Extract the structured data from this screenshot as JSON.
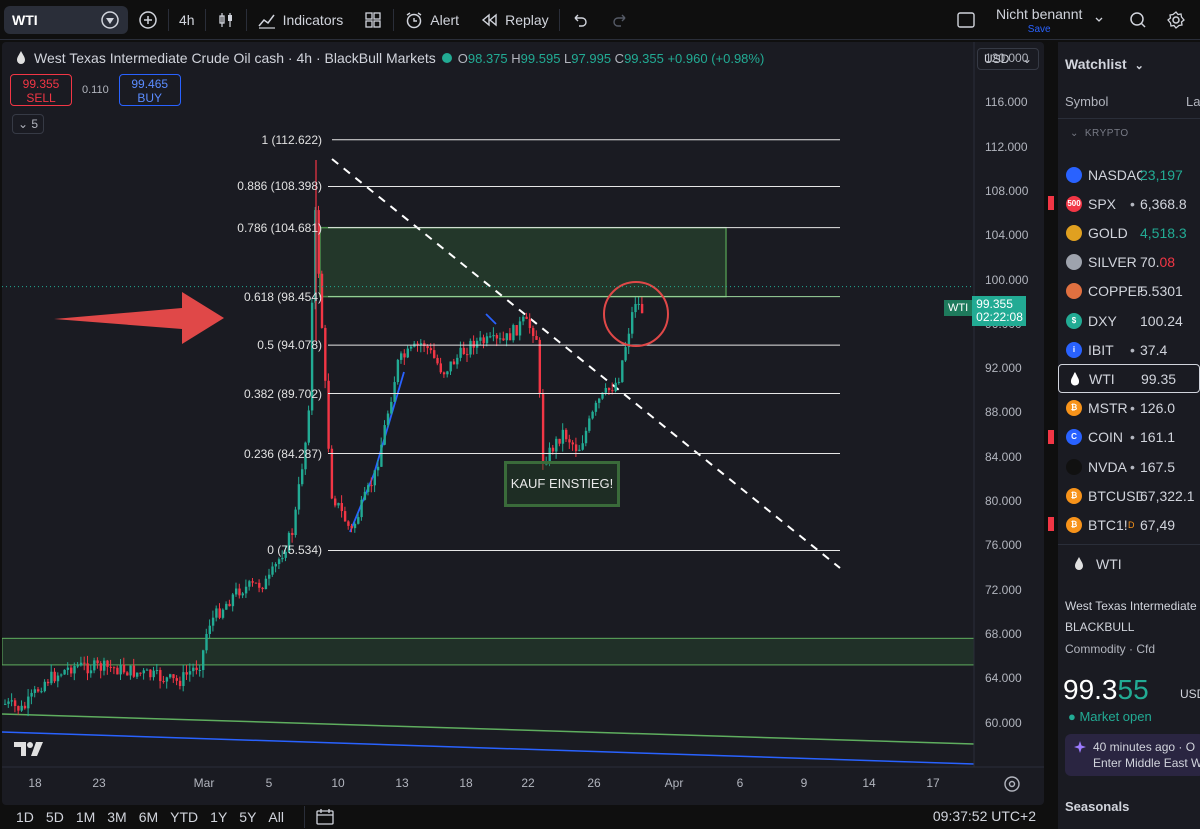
{
  "toolbar": {
    "symbol": "WTI",
    "interval": "4h",
    "indicators_label": "Indicators",
    "alert_label": "Alert",
    "replay_label": "Replay",
    "layout_name": "Nicht benannt",
    "save_label": "Save"
  },
  "chart": {
    "title": "West Texas Intermediate Crude Oil cash · 4h · BlackBull Markets",
    "ohlc": {
      "o_key": "O",
      "o": "98.375",
      "h_key": "H",
      "h": "99.595",
      "l_key": "L",
      "l": "97.995",
      "c_key": "C",
      "c": "99.355",
      "change": "+0.960 (+0.98%)"
    },
    "sell_price": "99.355",
    "sell_label": "SELL",
    "spread": "0.110",
    "buy_price": "99.465",
    "buy_label": "BUY",
    "interval_badge": "5",
    "currency": "USD",
    "price_label_symbol": "WTI",
    "price_label_value": "99.355",
    "price_label_countdown": "02:22:08",
    "annotation": "KAUF EINSTIEG!",
    "fib_levels": [
      {
        "label": "1 (112.622)",
        "value": 112.622
      },
      {
        "label": "0.886 (108.398)",
        "value": 108.398
      },
      {
        "label": "0.786 (104.681)",
        "value": 104.681
      },
      {
        "label": "0.618 (98.454)",
        "value": 98.454
      },
      {
        "label": "0.5 (94.078)",
        "value": 94.078
      },
      {
        "label": "0.382 (89.702)",
        "value": 89.702
      },
      {
        "label": "0.236 (84.287)",
        "value": 84.287
      },
      {
        "label": "0 (75.534)",
        "value": 75.534
      }
    ],
    "y_ticks": [
      "120.000",
      "116.000",
      "112.000",
      "108.000",
      "104.000",
      "100.000",
      "96.000",
      "92.000",
      "88.000",
      "84.000",
      "80.000",
      "76.000",
      "72.000",
      "68.000",
      "64.000",
      "60.000"
    ],
    "x_ticks": [
      "18",
      "23",
      "Mar",
      "5",
      "10",
      "13",
      "18",
      "22",
      "26",
      "Apr",
      "6",
      "9",
      "14",
      "17"
    ],
    "time_range_buttons": [
      "1D",
      "5D",
      "1M",
      "3M",
      "6M",
      "YTD",
      "1Y",
      "5Y",
      "All"
    ],
    "clock": "09:37:52 UTC+2",
    "colors": {
      "up": "#22ab94",
      "down": "#f23645",
      "zone": "#2f5a35",
      "accent": "#2962ff"
    }
  },
  "watchlist": {
    "title": "Watchlist",
    "col_symbol": "Symbol",
    "col_last": "La",
    "section": "KRYPTO",
    "rows": [
      {
        "symbol": "NASDAQ",
        "last": "23,197",
        "icon": "us-flag",
        "color": "#2962ff",
        "glyph": "",
        "last_color": "green"
      },
      {
        "symbol": "SPX",
        "last": "6,368.8",
        "icon": "500-badge",
        "color": "#f23645",
        "glyph": "500",
        "last_color": "",
        "flag": true,
        "dot": true
      },
      {
        "symbol": "GOLD",
        "last": "4,518.3",
        "icon": "gold-icon",
        "color": "#e0a020",
        "glyph": "",
        "last_color": "green"
      },
      {
        "symbol": "SILVER",
        "last": "70.08",
        "icon": "silver-icon",
        "color": "#9ea3ad",
        "glyph": "",
        "last_color": "mixed"
      },
      {
        "symbol": "COPPER",
        "last": "5.5301",
        "icon": "copper-icon",
        "color": "#e07040",
        "glyph": "",
        "last_color": ""
      },
      {
        "symbol": "DXY",
        "last": "100.24",
        "icon": "dollar-icon",
        "color": "#22ab94",
        "glyph": "$",
        "last_color": ""
      },
      {
        "symbol": "IBIT",
        "last": "37.4",
        "icon": "i-icon",
        "color": "#2962ff",
        "glyph": "i",
        "last_color": "",
        "dot": true
      },
      {
        "symbol": "WTI",
        "last": "99.35",
        "icon": "oil-drop-icon",
        "color": "transparent",
        "glyph": "",
        "last_color": "",
        "active": true
      },
      {
        "symbol": "MSTR",
        "last": "126.0",
        "icon": "bitcoin-icon",
        "color": "#f7931a",
        "glyph": "₿",
        "last_color": "",
        "dot": true
      },
      {
        "symbol": "COIN",
        "last": "161.1",
        "icon": "coinbase-icon",
        "color": "#2962ff",
        "glyph": "C",
        "last_color": "",
        "flag": true,
        "dot": true
      },
      {
        "symbol": "NVDA",
        "last": "167.5",
        "icon": "nvidia-icon",
        "color": "#111",
        "glyph": "",
        "last_color": "",
        "dot": true
      },
      {
        "symbol": "BTCUSD",
        "last": "67,322.1",
        "icon": "bitcoin-icon",
        "color": "#f7931a",
        "glyph": "₿",
        "last_color": ""
      },
      {
        "symbol": "BTC1!",
        "last": "67,49",
        "icon": "bitcoin-icon",
        "color": "#f7931a",
        "glyph": "₿",
        "last_color": "",
        "flag": true,
        "superscript": "D"
      }
    ]
  },
  "details": {
    "symbol": "WTI",
    "name": "West Texas Intermediate",
    "exchange": "BLACKBULL",
    "type": "Commodity · Cfd",
    "price_main": "99.3",
    "price_last": "55",
    "currency": "USD",
    "status": "Market open",
    "news_time": "40 minutes ago · O",
    "news_text": "Enter Middle East W",
    "seasonals": "Seasonals"
  }
}
